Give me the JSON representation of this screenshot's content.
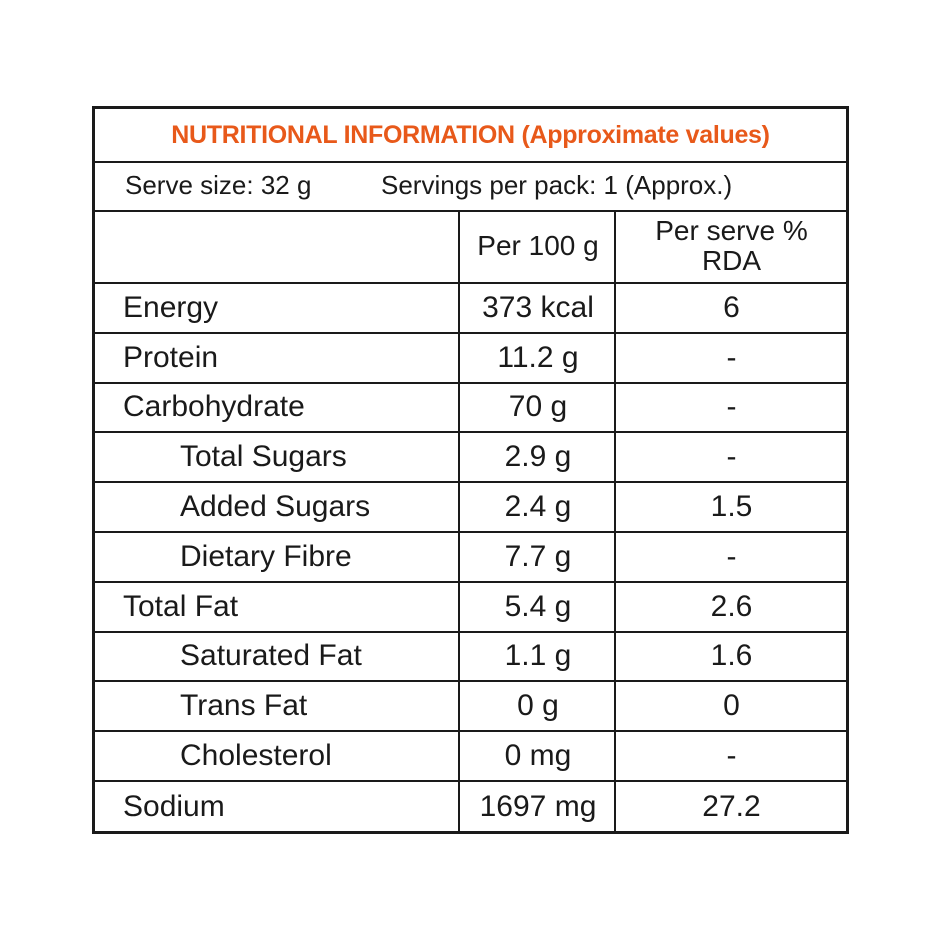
{
  "title": "NUTRITIONAL INFORMATION (Approximate values)",
  "serve_size": "Serve size: 32 g",
  "servings_per_pack": "Servings per pack: 1 (Approx.)",
  "columns": {
    "nutrient": "",
    "per_100g": "Per 100 g",
    "per_serve_line1": "Per serve %",
    "per_serve_line2": "RDA"
  },
  "rows": [
    {
      "name": "Energy",
      "per_100g": "373 kcal",
      "per_serve": "6",
      "indent": false
    },
    {
      "name": "Protein",
      "per_100g": "11.2 g",
      "per_serve": "-",
      "indent": false
    },
    {
      "name": "Carbohydrate",
      "per_100g": "70 g",
      "per_serve": "-",
      "indent": false
    },
    {
      "name": "Total Sugars",
      "per_100g": "2.9 g",
      "per_serve": "-",
      "indent": true
    },
    {
      "name": "Added Sugars",
      "per_100g": "2.4 g",
      "per_serve": "1.5",
      "indent": true
    },
    {
      "name": "Dietary Fibre",
      "per_100g": "7.7 g",
      "per_serve": "-",
      "indent": true
    },
    {
      "name": "Total Fat",
      "per_100g": "5.4 g",
      "per_serve": "2.6",
      "indent": false
    },
    {
      "name": "Saturated Fat",
      "per_100g": "1.1 g",
      "per_serve": "1.6",
      "indent": true
    },
    {
      "name": "Trans Fat",
      "per_100g": "0 g",
      "per_serve": "0",
      "indent": true
    },
    {
      "name": "Cholesterol",
      "per_100g": "0 mg",
      "per_serve": "-",
      "indent": true
    },
    {
      "name": "Sodium",
      "per_100g": "1697 mg",
      "per_serve": "27.2",
      "indent": false
    }
  ],
  "colors": {
    "title": "#e8591a",
    "border": "#1a1a1a",
    "text": "#1a1a1a",
    "background": "#ffffff"
  }
}
